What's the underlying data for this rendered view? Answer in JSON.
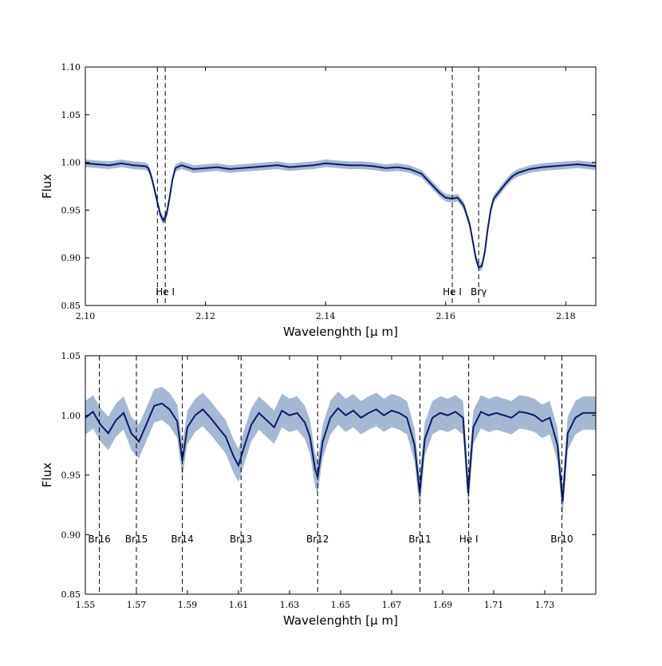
{
  "chart_data": [
    {
      "type": "line",
      "title": "",
      "xlabel": "Wavelenghth [μ m]",
      "ylabel": "Flux",
      "xlim": [
        2.1,
        2.185
      ],
      "ylim": [
        0.85,
        1.1
      ],
      "xticks": [
        2.1,
        2.12,
        2.14,
        2.16,
        2.18
      ],
      "xtick_labels": [
        "2.10",
        "2.12",
        "2.14",
        "2.16",
        "2.18"
      ],
      "yticks": [
        0.85,
        0.9,
        0.95,
        1.0,
        1.05,
        1.1
      ],
      "ytick_labels": [
        "0.85",
        "0.90",
        "0.95",
        "1.00",
        "1.05",
        "1.10"
      ],
      "grid": false,
      "line_color": "#0b1a6b",
      "band_color": "#9fb4cf",
      "x": [
        2.1,
        2.102,
        2.104,
        2.106,
        2.108,
        2.11,
        2.1105,
        2.111,
        2.1115,
        2.112,
        2.1125,
        2.113,
        2.1135,
        2.114,
        2.1145,
        2.115,
        2.116,
        2.117,
        2.118,
        2.12,
        2.122,
        2.124,
        2.126,
        2.128,
        2.13,
        2.132,
        2.134,
        2.136,
        2.138,
        2.14,
        2.142,
        2.144,
        2.146,
        2.148,
        2.15,
        2.152,
        2.154,
        2.156,
        2.1575,
        2.159,
        2.16,
        2.161,
        2.162,
        2.163,
        2.164,
        2.1645,
        2.165,
        2.1655,
        2.166,
        2.1665,
        2.167,
        2.1675,
        2.168,
        2.169,
        2.17,
        2.171,
        2.172,
        2.174,
        2.176,
        2.178,
        2.18,
        2.182,
        2.185
      ],
      "y": [
        0.999,
        0.998,
        0.997,
        0.999,
        0.997,
        0.996,
        0.994,
        0.985,
        0.972,
        0.958,
        0.945,
        0.939,
        0.945,
        0.962,
        0.982,
        0.994,
        0.997,
        0.995,
        0.993,
        0.994,
        0.995,
        0.993,
        0.994,
        0.995,
        0.996,
        0.997,
        0.995,
        0.996,
        0.997,
        0.999,
        0.998,
        0.997,
        0.997,
        0.996,
        0.994,
        0.995,
        0.993,
        0.988,
        0.978,
        0.968,
        0.963,
        0.962,
        0.963,
        0.955,
        0.935,
        0.918,
        0.9,
        0.89,
        0.891,
        0.905,
        0.93,
        0.95,
        0.962,
        0.97,
        0.978,
        0.985,
        0.989,
        0.993,
        0.995,
        0.996,
        0.997,
        0.998,
        0.996
      ],
      "band_halfwidth": 0.004,
      "vlines": [
        {
          "x": 2.112,
          "label": ""
        },
        {
          "x": 2.1133,
          "label": "He I"
        },
        {
          "x": 2.1611,
          "label": "He I"
        },
        {
          "x": 2.1655,
          "label": "Brγ"
        }
      ]
    },
    {
      "type": "line",
      "title": "",
      "xlabel": "Wavelenghth [μ m]",
      "ylabel": "Flux",
      "xlim": [
        1.55,
        1.75
      ],
      "ylim": [
        0.85,
        1.05
      ],
      "xticks": [
        1.55,
        1.57,
        1.59,
        1.61,
        1.63,
        1.65,
        1.67,
        1.69,
        1.71,
        1.73
      ],
      "xtick_labels": [
        "1.55",
        "1.57",
        "1.59",
        "1.61",
        "1.63",
        "1.65",
        "1.67",
        "1.69",
        "1.71",
        "1.73"
      ],
      "yticks": [
        0.85,
        0.9,
        0.95,
        1.0,
        1.05
      ],
      "ytick_labels": [
        "0.85",
        "0.90",
        "0.95",
        "1.00",
        "1.05"
      ],
      "grid": false,
      "line_color": "#0b1a6b",
      "band_color": "#9fb4cf",
      "x": [
        1.55,
        1.553,
        1.556,
        1.559,
        1.562,
        1.565,
        1.568,
        1.571,
        1.574,
        1.577,
        1.58,
        1.583,
        1.586,
        1.588,
        1.59,
        1.593,
        1.596,
        1.599,
        1.602,
        1.605,
        1.608,
        1.61,
        1.612,
        1.615,
        1.618,
        1.621,
        1.624,
        1.627,
        1.63,
        1.633,
        1.636,
        1.638,
        1.64,
        1.641,
        1.643,
        1.646,
        1.649,
        1.652,
        1.655,
        1.658,
        1.661,
        1.664,
        1.667,
        1.67,
        1.673,
        1.676,
        1.679,
        1.681,
        1.683,
        1.686,
        1.689,
        1.692,
        1.695,
        1.698,
        1.7,
        1.702,
        1.705,
        1.708,
        1.711,
        1.714,
        1.717,
        1.72,
        1.723,
        1.726,
        1.729,
        1.732,
        1.735,
        1.737,
        1.739,
        1.742,
        1.745,
        1.75
      ],
      "y": [
        0.998,
        1.003,
        0.992,
        0.985,
        0.996,
        1.002,
        0.985,
        0.978,
        0.993,
        1.008,
        1.01,
        1.005,
        0.995,
        0.962,
        0.99,
        1.0,
        1.005,
        0.998,
        0.99,
        0.982,
        0.966,
        0.958,
        0.972,
        0.992,
        1.002,
        0.996,
        0.99,
        1.004,
        1.0,
        1.002,
        0.994,
        0.982,
        0.955,
        0.948,
        0.978,
        0.998,
        1.006,
        1.0,
        1.004,
        0.998,
        1.002,
        1.005,
        1.0,
        1.004,
        1.002,
        0.998,
        0.975,
        0.935,
        0.98,
        0.998,
        1.002,
        1.0,
        1.003,
        0.998,
        0.935,
        0.99,
        1.003,
        1.0,
        1.002,
        1.0,
        0.998,
        1.003,
        1.002,
        1.0,
        0.995,
        0.998,
        0.975,
        0.928,
        0.985,
        0.998,
        1.002,
        1.002
      ],
      "band_halfwidth": 0.014,
      "vlines": [
        {
          "x": 1.5555,
          "label": "Br16"
        },
        {
          "x": 1.57,
          "label": "Br15"
        },
        {
          "x": 1.588,
          "label": "Br14"
        },
        {
          "x": 1.611,
          "label": "Br13"
        },
        {
          "x": 1.641,
          "label": "Br12"
        },
        {
          "x": 1.6811,
          "label": "Br11"
        },
        {
          "x": 1.7002,
          "label": "He I"
        },
        {
          "x": 1.7367,
          "label": "Br10"
        }
      ]
    }
  ]
}
